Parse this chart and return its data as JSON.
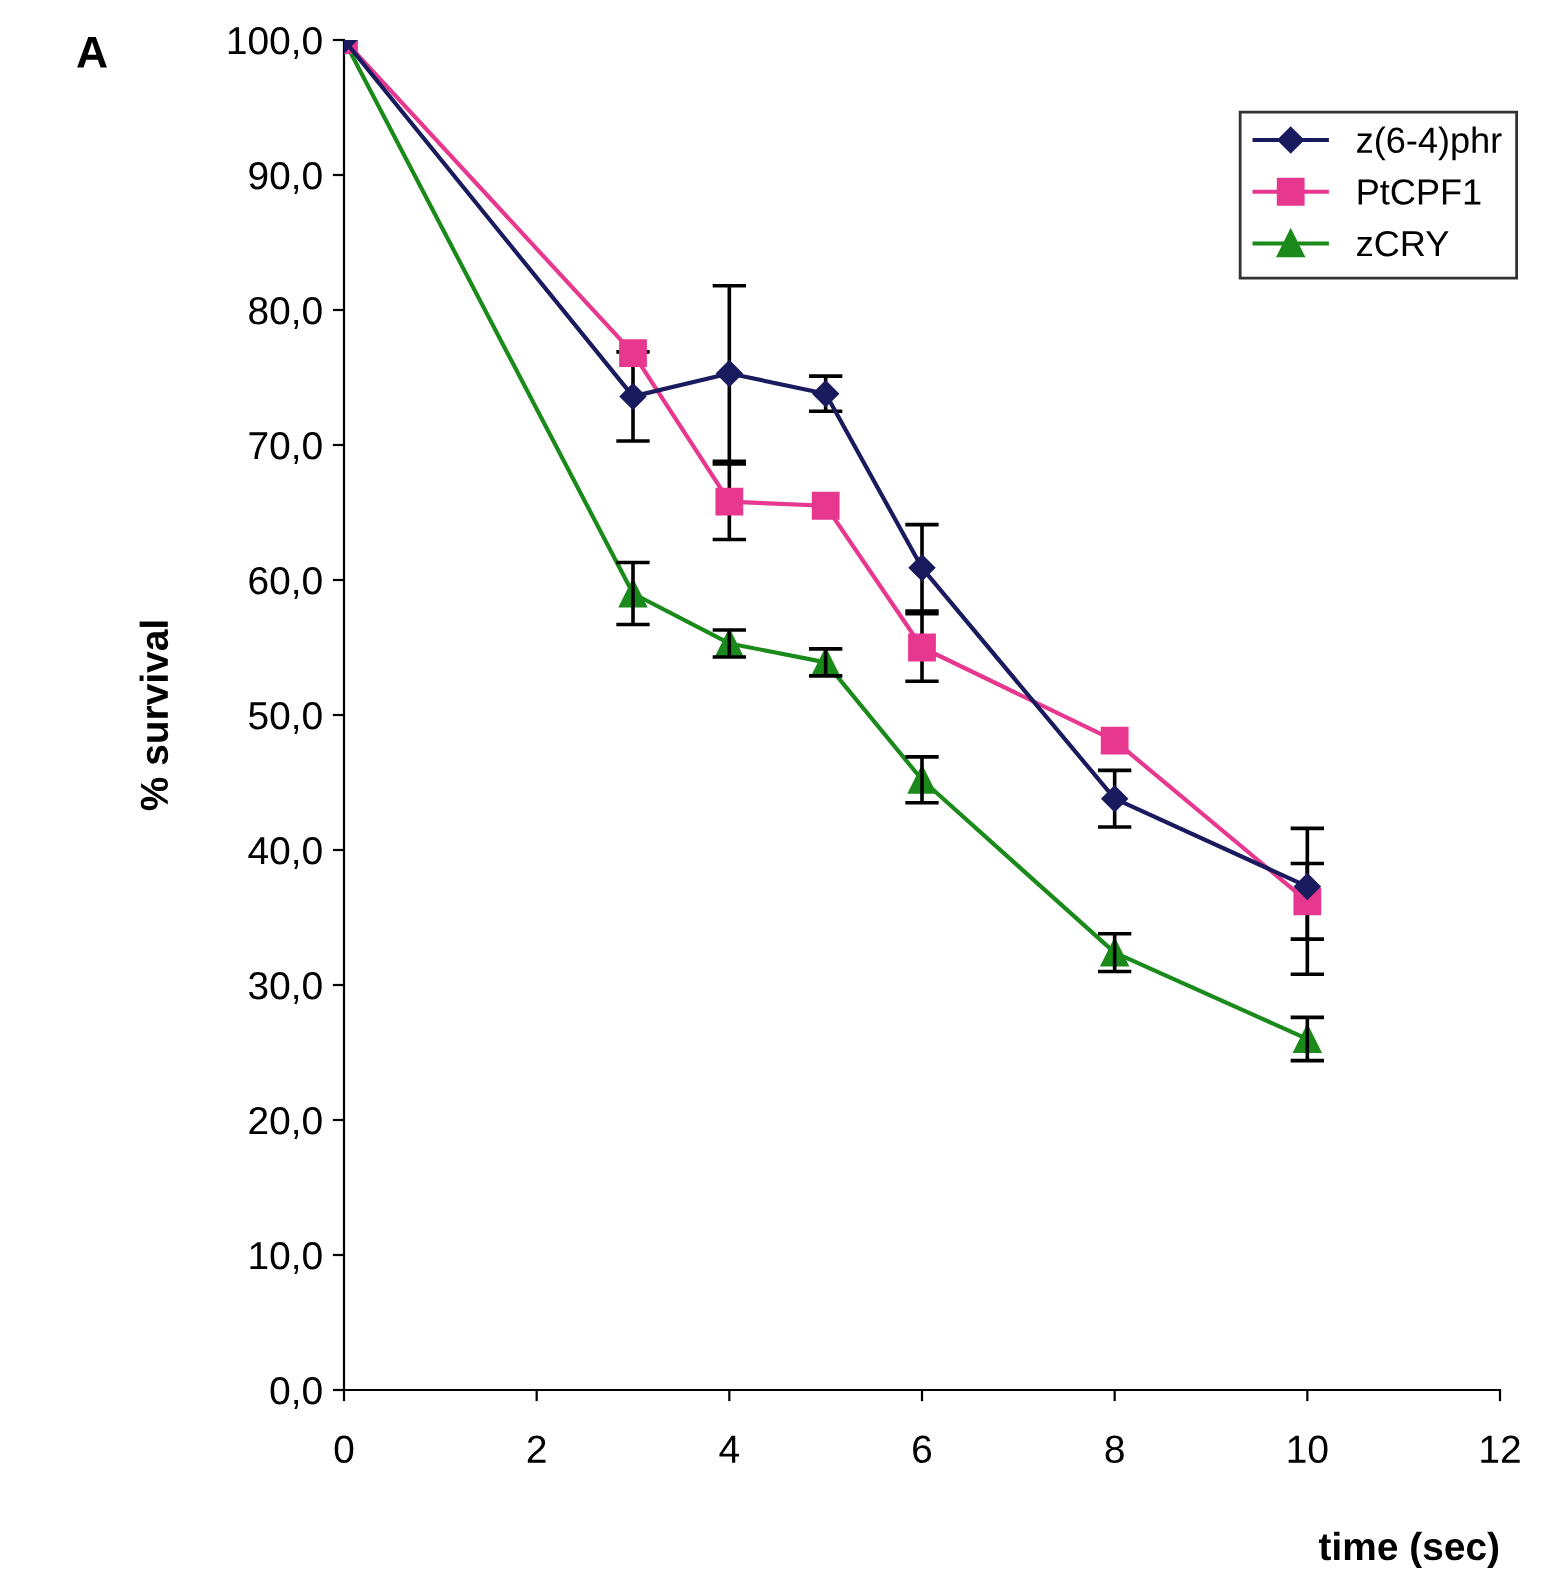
{
  "chart_data": {
    "type": "line",
    "xlabel": "time (sec)",
    "ylabel": "% survival",
    "annotations": [
      "A"
    ],
    "x": [
      0,
      3,
      4,
      5,
      6,
      8,
      10
    ],
    "series": [
      {
        "name": "z(6-4)phr",
        "color": "#1a1a5e",
        "marker": "diamond",
        "values": [
          100,
          73.6,
          75.3,
          73.8,
          60.9,
          43.8,
          37.3
        ],
        "errors": [
          null,
          3.3,
          6.5,
          1.3,
          3.2,
          2.1,
          [
            30.8,
            41.6
          ]
        ]
      },
      {
        "name": "PtCPF1",
        "color": "#e8378f",
        "marker": "square",
        "values": [
          100,
          76.8,
          65.8,
          65.5,
          55.0,
          48.1,
          36.2
        ],
        "errors": [
          null,
          null,
          2.8,
          null,
          2.5,
          null,
          2.8
        ]
      },
      {
        "name": "zCRY",
        "color": "#1a8a1a",
        "marker": "triangle",
        "values": [
          100,
          59.0,
          55.3,
          53.9,
          45.2,
          32.4,
          26.0
        ],
        "errors": [
          null,
          2.3,
          1.0,
          1.0,
          1.7,
          1.4,
          1.6
        ]
      }
    ],
    "xlim": [
      0,
      12
    ],
    "xticks": [
      0,
      2,
      4,
      6,
      8,
      10,
      12
    ],
    "ylim": [
      0,
      100
    ],
    "yticks": [
      {
        "value": 0,
        "label": "0,0"
      },
      {
        "value": 10,
        "label": "10,0"
      },
      {
        "value": 20,
        "label": "20,0"
      },
      {
        "value": 30,
        "label": "30,0"
      },
      {
        "value": 40,
        "label": "40,0"
      },
      {
        "value": 50,
        "label": "50,0"
      },
      {
        "value": 60,
        "label": "60,0"
      },
      {
        "value": 70,
        "label": "70,0"
      },
      {
        "value": 80,
        "label": "80,0"
      },
      {
        "value": 90,
        "label": "90,0"
      },
      {
        "value": 100,
        "label": "100,0"
      }
    ],
    "grid": false,
    "legend": "top right"
  }
}
